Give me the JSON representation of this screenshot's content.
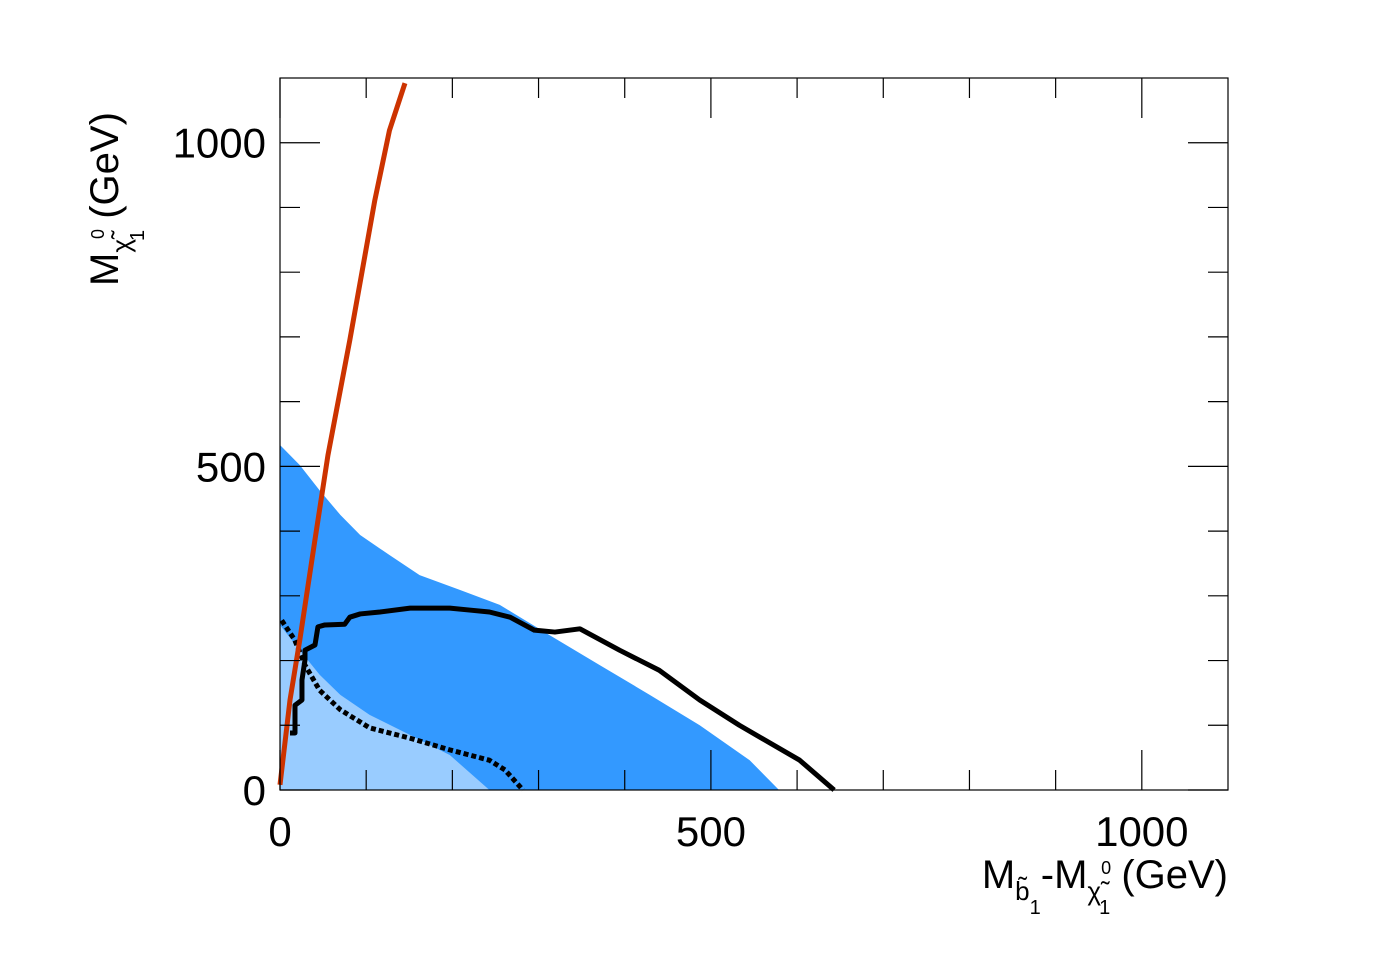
{
  "chart_data": {
    "type": "line",
    "xlabel": [
      "M",
      "b̃",
      "1",
      "-M",
      "χ̃",
      "0",
      "1",
      " (GeV)"
    ],
    "ylabel": [
      "M",
      "χ̃",
      "0",
      "1",
      " (GeV)"
    ],
    "xlim": [
      0,
      1100
    ],
    "ylim": [
      0,
      1100
    ],
    "xticks": [
      0,
      500,
      1000
    ],
    "yticks": [
      0,
      500,
      1000
    ],
    "xminorticks": [
      100,
      200,
      300,
      400,
      600,
      700,
      800,
      900
    ],
    "yminorticks": [
      100,
      200,
      300,
      400,
      600,
      700,
      800,
      900
    ],
    "series": [
      {
        "color": "#3399ff",
        "fill": true,
        "x": [
          0,
          23,
          46,
          70,
          93,
          127,
          162,
          209,
          255,
          313,
          371,
          429,
          487,
          545,
          579
        ],
        "values": [
          533,
          502,
          463,
          425,
          394,
          363,
          332,
          309,
          286,
          239,
          193,
          147,
          100,
          46,
          0
        ]
      },
      {
        "color": "#99ccff",
        "fill": true,
        "x": [
          0,
          23,
          46,
          70,
          104,
          151,
          197,
          243
        ],
        "values": [
          255,
          216,
          178,
          147,
          116,
          85,
          54,
          0
        ]
      },
      {
        "color": "#000000",
        "dash": false,
        "x": [
          11.6,
          17.4,
          17.4,
          25.5,
          25.5,
          29,
          29,
          40.6,
          44,
          52,
          75,
          81,
          93,
          116,
          151,
          197,
          220,
          243,
          267,
          295,
          319,
          348,
          394,
          440,
          487,
          533,
          603,
          643
        ],
        "values": [
          88,
          88,
          131,
          139,
          170,
          201,
          216,
          224,
          252,
          255,
          256,
          267,
          272,
          275,
          281,
          281,
          278,
          275,
          267,
          247,
          244,
          249,
          216,
          185,
          139,
          100,
          46,
          0
        ]
      },
      {
        "color": "#000000",
        "dash": true,
        "x": [
          2,
          17,
          29,
          46,
          70,
          104,
          151,
          197,
          243,
          261,
          282
        ],
        "values": [
          262,
          232,
          193,
          154,
          124,
          96,
          80,
          62,
          46,
          31,
          0
        ]
      },
      {
        "color": "#cc3300",
        "dash": false,
        "x": [
          0,
          11.6,
          23,
          40.5,
          55.6,
          81,
          110,
          127,
          145
        ],
        "values": [
          8,
          139,
          232,
          386,
          517,
          695,
          911,
          1019,
          1092
        ]
      }
    ]
  }
}
